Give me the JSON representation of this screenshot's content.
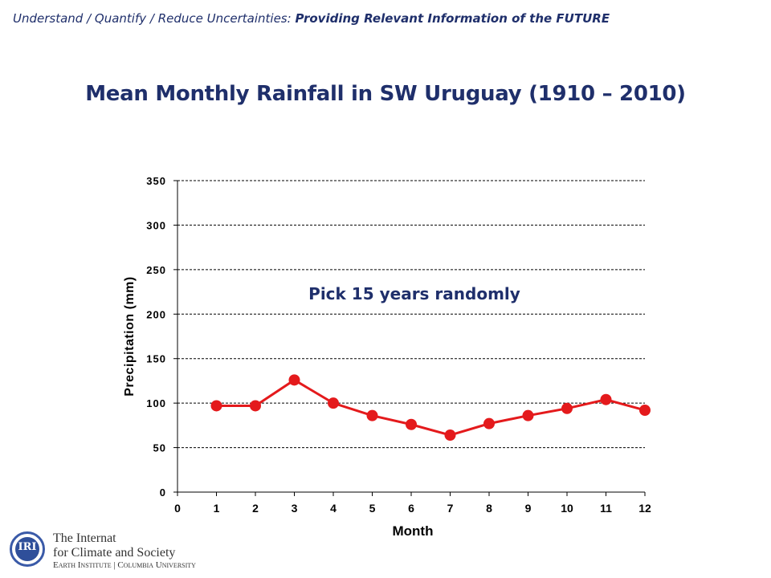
{
  "header": {
    "prefix": "Understand / Quantify / Reduce Uncertainties: ",
    "emphasis": "Providing Relevant Information of the FUTURE"
  },
  "page_title": "Mean Monthly Rainfall in SW Uruguay (1910 – 2010)",
  "logo": {
    "line1": "The Internat",
    "line2": "for Climate and Society",
    "line3": "Earth Institute | Columbia University"
  },
  "chart_data": {
    "type": "line",
    "title": "",
    "xlabel": "Month",
    "ylabel": "Precipitation (mm)",
    "x": [
      1,
      2,
      3,
      4,
      5,
      6,
      7,
      8,
      9,
      10,
      11,
      12
    ],
    "xlim": [
      0,
      12
    ],
    "xticks": [
      0,
      1,
      2,
      3,
      4,
      5,
      6,
      7,
      8,
      9,
      10,
      11,
      12
    ],
    "ylim": [
      0,
      350
    ],
    "yticks": [
      0,
      50,
      100,
      150,
      200,
      250,
      300,
      350
    ],
    "grid": "horizontal dashed",
    "series": [
      {
        "values": [
          97,
          97,
          126,
          100,
          86,
          76,
          64,
          77,
          86,
          94,
          104,
          92
        ],
        "color": "#e41a1c"
      }
    ],
    "annotation": "Pick 15 years randomly",
    "annotation_color": "#1f2f6b"
  }
}
